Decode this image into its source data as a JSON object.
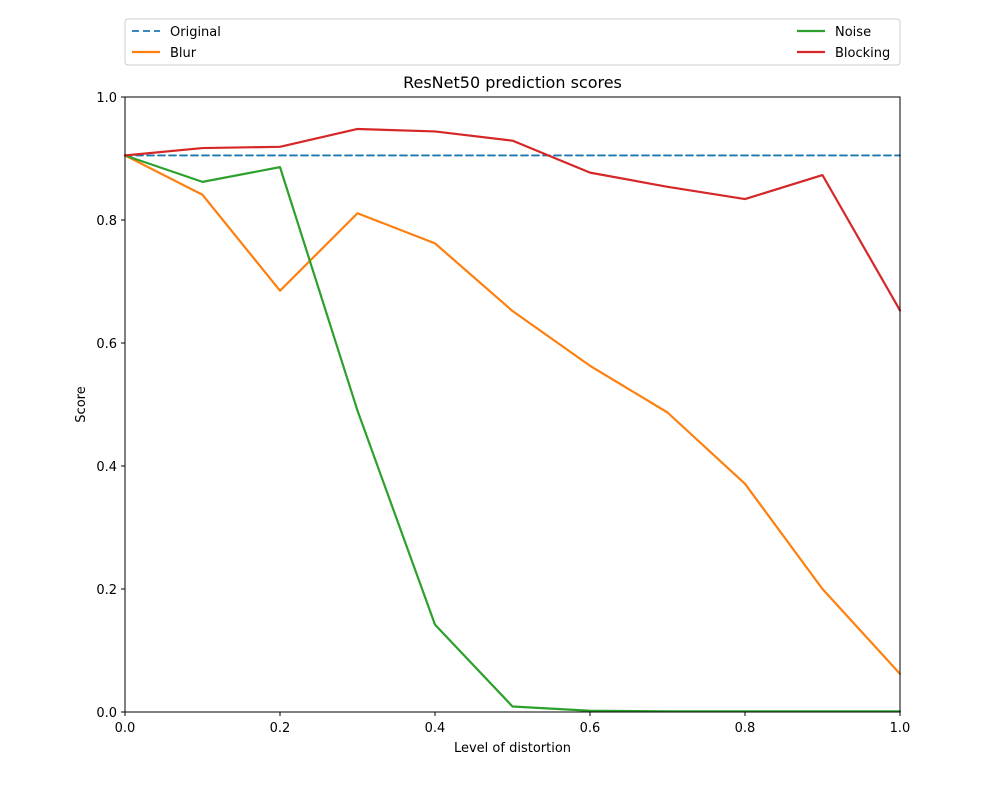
{
  "chart_data": {
    "type": "line",
    "title": "ResNet50 prediction scores",
    "xlabel": "Level of distortion",
    "ylabel": "Score",
    "xlim": [
      0.0,
      1.0
    ],
    "ylim": [
      0.0,
      1.0
    ],
    "xticks": [
      "0.0",
      "0.2",
      "0.4",
      "0.6",
      "0.8",
      "1.0"
    ],
    "yticks": [
      "0.0",
      "0.2",
      "0.4",
      "0.6",
      "0.8",
      "1.0"
    ],
    "grid": false,
    "legend_placement": "above plot, two columns",
    "x": [
      0.0,
      0.1,
      0.2,
      0.3,
      0.4,
      0.5,
      0.6,
      0.7,
      0.8,
      0.9,
      1.0
    ],
    "series": [
      {
        "name": "Original",
        "color": "#1f77b4",
        "style": "dashed",
        "values": [
          0.905,
          0.905,
          0.905,
          0.905,
          0.905,
          0.905,
          0.905,
          0.905,
          0.905,
          0.905,
          0.905
        ]
      },
      {
        "name": "Blur",
        "color": "#ff7f0e",
        "style": "solid",
        "values": [
          0.905,
          0.841,
          0.685,
          0.811,
          0.762,
          0.652,
          0.563,
          0.487,
          0.371,
          0.2,
          0.062
        ]
      },
      {
        "name": "Noise",
        "color": "#2ca02c",
        "style": "solid",
        "values": [
          0.905,
          0.862,
          0.886,
          0.49,
          0.142,
          0.009,
          0.002,
          0.001,
          0.001,
          0.001,
          0.001
        ]
      },
      {
        "name": "Blocking",
        "color": "#d62728",
        "style": "solid",
        "values": [
          0.905,
          0.917,
          0.919,
          0.948,
          0.944,
          0.929,
          0.877,
          0.854,
          0.834,
          0.873,
          0.653
        ]
      }
    ]
  }
}
